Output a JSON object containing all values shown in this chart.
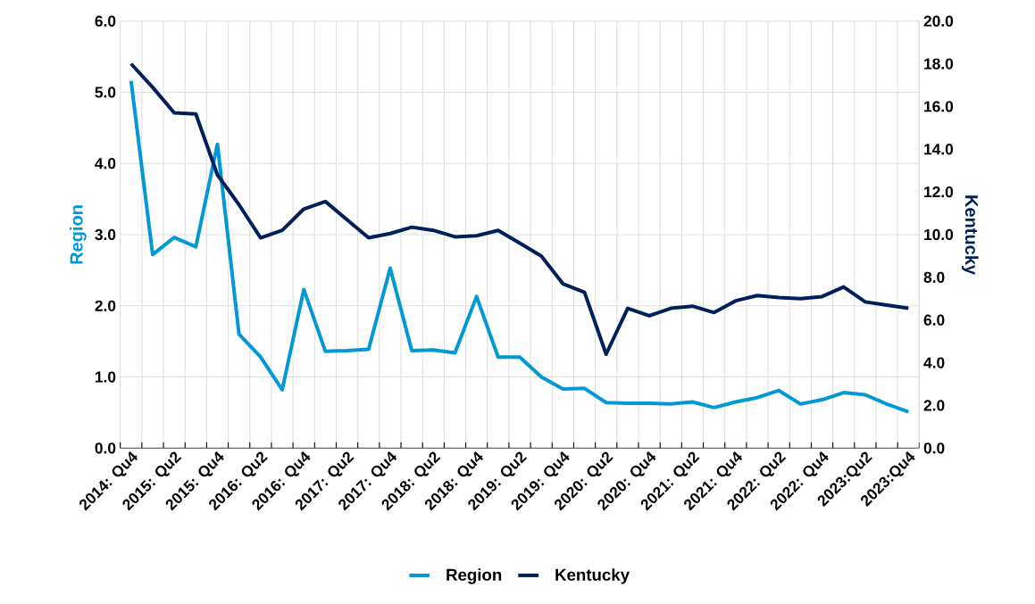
{
  "chart_data": {
    "type": "line",
    "categories": [
      "2014: Qu4",
      null,
      "2015: Qu2",
      null,
      "2015: Qu4",
      null,
      "2016: Qu2",
      null,
      "2016: Qu4",
      null,
      "2017: Qu2",
      null,
      "2017: Qu4",
      null,
      "2018: Qu2",
      null,
      "2018: Qu4",
      null,
      "2019: Qu2",
      null,
      "2019: Qu4",
      null,
      "2020: Qu2",
      null,
      "2020: Qu4",
      null,
      "2021: Qu2",
      null,
      "2021: Qu4",
      null,
      "2022: Qu2",
      null,
      "2022: Qu4",
      null,
      "2023:Qu2",
      null,
      "2023:Qu4"
    ],
    "series": [
      {
        "name": "Region",
        "color": "#0099d6",
        "values": [
          5.16,
          2.72,
          2.96,
          2.83,
          4.27,
          1.6,
          1.28,
          0.82,
          2.23,
          1.36,
          1.37,
          1.39,
          2.53,
          1.37,
          1.38,
          1.34,
          2.13,
          1.28,
          1.28,
          1.0,
          0.83,
          0.84,
          0.64,
          0.63,
          0.63,
          0.62,
          0.65,
          0.57,
          0.65,
          0.71,
          0.81,
          0.62,
          0.68,
          0.78,
          0.75,
          0.62,
          0.51
        ]
      },
      {
        "name": "Kentucky",
        "color": "#00205b",
        "axis": "y2",
        "values": [
          18.0,
          16.9,
          15.7,
          15.65,
          12.8,
          11.4,
          9.85,
          10.2,
          11.2,
          11.55,
          10.7,
          9.85,
          10.05,
          10.35,
          10.2,
          9.9,
          9.95,
          10.2,
          9.6,
          9.0,
          7.7,
          7.3,
          4.4,
          6.55,
          6.2,
          6.55,
          6.65,
          6.35,
          6.9,
          7.15,
          7.05,
          7.0,
          7.1,
          7.55,
          6.85,
          6.7,
          6.55
        ]
      }
    ],
    "ylabel": "Region",
    "y2label": "Kentucky",
    "ylim": [
      0,
      6
    ],
    "yticks": [
      {
        "value": 0,
        "label": "0.0"
      },
      {
        "value": 1,
        "label": "1.0"
      },
      {
        "value": 2,
        "label": "2.0"
      },
      {
        "value": 3,
        "label": "3.0"
      },
      {
        "value": 4,
        "label": "4.0"
      },
      {
        "value": 5,
        "label": "5.0"
      },
      {
        "value": 6,
        "label": "6.0"
      }
    ],
    "y2lim": [
      0,
      20
    ],
    "y2ticks": [
      {
        "value": 0,
        "label": "0.0"
      },
      {
        "value": 2,
        "label": "2.0"
      },
      {
        "value": 4,
        "label": "4.0"
      },
      {
        "value": 6,
        "label": "6.0"
      },
      {
        "value": 8,
        "label": "8.0"
      },
      {
        "value": 10,
        "label": "10.0"
      },
      {
        "value": 12,
        "label": "12.0"
      },
      {
        "value": 14,
        "label": "14.0"
      },
      {
        "value": 16,
        "label": "16.0"
      },
      {
        "value": 18,
        "label": "18.0"
      },
      {
        "value": 20,
        "label": "20.0"
      }
    ],
    "grid": true,
    "legend": "bottom",
    "marker": "none",
    "line_style": "solid"
  }
}
